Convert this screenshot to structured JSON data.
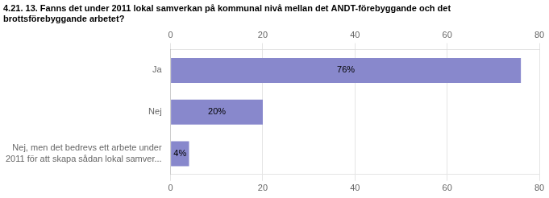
{
  "chart_data": {
    "type": "bar",
    "orientation": "horizontal",
    "title": "4.21. 13. Fanns det under 2011 lokal samverkan på kommunal nivå mellan det ANDT-förebyggande och det\nbrottsförebyggande arbetet?",
    "categories": [
      "Ja",
      "Nej",
      "Nej, men det bedrevs ett arbete under\n2011 för att skapa sådan lokal samver..."
    ],
    "values": [
      76,
      20,
      4
    ],
    "value_labels": [
      "76%",
      "20%",
      "4%"
    ],
    "data_labels": true,
    "color": "#8888cc",
    "xlim": [
      0,
      80
    ],
    "xticks": [
      0,
      20,
      40,
      60,
      80
    ],
    "grid": true
  }
}
